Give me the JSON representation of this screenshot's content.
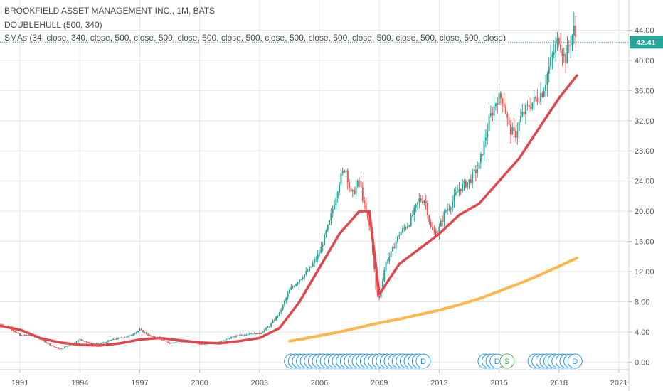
{
  "legend": {
    "title": "BROOKFIELD ASSET MANAGEMENT INC., 1M, BATS",
    "indicator1": "DOUBLEHULL (500, 340)",
    "indicator2": "SMAs (34, close, 340, close, 500, close, 500, close, 500, close, 500, close, 500, close, 500, close, 500, close, 500, close, 500, close)"
  },
  "colors": {
    "up": "#26a69a",
    "down": "#ef5350",
    "hull": "#e0474c",
    "sma": "#ffb74d",
    "grid": "#e6e6e6",
    "price_line": "#26a69a",
    "marker": "#2196f3",
    "marker_split": "#4caf50"
  },
  "chart_data": {
    "type": "line",
    "subtype": "candlestick",
    "xlabel": "",
    "ylabel": "",
    "x_ticks": [
      "1991",
      "1994",
      "1997",
      "2000",
      "2003",
      "2006",
      "2009",
      "2012",
      "2015",
      "2018",
      "2021"
    ],
    "y_ticks": [
      "0.00",
      "4.00",
      "8.00",
      "12.00",
      "16.00",
      "20.00",
      "24.00",
      "28.00",
      "32.00",
      "36.00",
      "40.00",
      "44.00"
    ],
    "xlim": [
      1990.0,
      2021.5
    ],
    "ylim": [
      -1.0,
      48.0
    ],
    "last_price": 42.41,
    "last_price_label": "42.41",
    "price_series": {
      "name": "",
      "x": [
        1990.0,
        1990.5,
        1991.0,
        1991.5,
        1992.0,
        1992.5,
        1993.0,
        1993.5,
        1994.0,
        1994.5,
        1995.0,
        1995.5,
        1996.0,
        1996.5,
        1997.0,
        1997.5,
        1998.0,
        1998.5,
        1999.0,
        1999.5,
        2000.0,
        2000.5,
        2001.0,
        2001.5,
        2002.0,
        2002.5,
        2003.0,
        2003.5,
        2004.0,
        2004.5,
        2005.0,
        2005.5,
        2006.0,
        2006.5,
        2007.0,
        2007.3,
        2007.6,
        2008.0,
        2008.3,
        2008.6,
        2008.85,
        2009.0,
        2009.3,
        2009.6,
        2010.0,
        2010.5,
        2011.0,
        2011.3,
        2011.6,
        2011.9,
        2012.3,
        2012.6,
        2013.0,
        2013.5,
        2014.0,
        2014.5,
        2014.9,
        2015.2,
        2015.5,
        2015.8,
        2016.1,
        2016.5,
        2016.9,
        2017.2,
        2017.6,
        2018.0,
        2018.3,
        2018.5,
        2018.75,
        2018.9
      ],
      "y": [
        5.0,
        4.6,
        3.5,
        3.6,
        3.1,
        2.3,
        1.7,
        2.3,
        3.0,
        2.5,
        2.4,
        2.9,
        3.2,
        3.5,
        4.3,
        3.5,
        3.0,
        2.5,
        2.8,
        2.6,
        2.4,
        2.5,
        2.7,
        3.2,
        3.6,
        3.8,
        3.8,
        4.8,
        6.5,
        9.5,
        11.0,
        12.3,
        14.5,
        18.5,
        24.0,
        26.0,
        22.0,
        24.0,
        20.0,
        17.0,
        9.0,
        8.5,
        13.0,
        14.5,
        17.0,
        18.5,
        21.5,
        21.5,
        17.5,
        17.0,
        20.0,
        21.0,
        23.0,
        24.0,
        26.0,
        32.0,
        35.0,
        35.0,
        31.0,
        30.0,
        32.5,
        34.0,
        35.0,
        36.0,
        40.0,
        43.0,
        40.0,
        42.0,
        44.0,
        42.41
      ]
    },
    "series": [
      {
        "name": "",
        "x": [
          1990.0,
          1991.0,
          1992.0,
          1993.0,
          1994.0,
          1995.0,
          1996.0,
          1997.0,
          1998.0,
          1999.0,
          2000.0,
          2001.0,
          2002.0,
          2003.0,
          2004.0,
          2005.0,
          2006.0,
          2007.0,
          2008.0,
          2008.5,
          2009.0,
          2010.0,
          2011.0,
          2012.0,
          2013.0,
          2014.0,
          2015.0,
          2016.0,
          2017.0,
          2018.0,
          2018.9
        ],
        "y": [
          4.8,
          4.3,
          3.2,
          2.6,
          2.3,
          2.2,
          2.5,
          3.0,
          3.2,
          2.9,
          2.6,
          2.5,
          2.8,
          3.2,
          4.5,
          8.0,
          12.5,
          17.0,
          20.0,
          20.0,
          9.0,
          13.0,
          15.0,
          17.0,
          19.5,
          21.0,
          24.0,
          27.0,
          31.0,
          35.0,
          38.0
        ]
      },
      {
        "name": "",
        "x": [
          2004.5,
          2005.0,
          2006.0,
          2007.0,
          2008.0,
          2009.0,
          2010.0,
          2011.0,
          2012.0,
          2013.0,
          2014.0,
          2015.0,
          2016.0,
          2017.0,
          2018.0,
          2018.9
        ],
        "y": [
          2.8,
          3.0,
          3.5,
          4.0,
          4.6,
          5.2,
          5.7,
          6.3,
          6.9,
          7.6,
          8.4,
          9.4,
          10.4,
          11.5,
          12.7,
          13.8
        ]
      }
    ],
    "dividend_markers": [
      {
        "x": 2004.6,
        "label": ""
      },
      {
        "x": 2004.8,
        "label": ""
      },
      {
        "x": 2005.0,
        "label": ""
      },
      {
        "x": 2005.2,
        "label": ""
      },
      {
        "x": 2005.4,
        "label": ""
      },
      {
        "x": 2005.6,
        "label": ""
      },
      {
        "x": 2005.8,
        "label": ""
      },
      {
        "x": 2006.0,
        "label": ""
      },
      {
        "x": 2006.2,
        "label": ""
      },
      {
        "x": 2006.4,
        "label": ""
      },
      {
        "x": 2006.6,
        "label": ""
      },
      {
        "x": 2006.8,
        "label": ""
      },
      {
        "x": 2007.0,
        "label": ""
      },
      {
        "x": 2007.2,
        "label": ""
      },
      {
        "x": 2007.4,
        "label": ""
      },
      {
        "x": 2007.6,
        "label": ""
      },
      {
        "x": 2007.8,
        "label": ""
      },
      {
        "x": 2008.0,
        "label": ""
      },
      {
        "x": 2008.2,
        "label": ""
      },
      {
        "x": 2008.4,
        "label": ""
      },
      {
        "x": 2008.6,
        "label": ""
      },
      {
        "x": 2008.8,
        "label": ""
      },
      {
        "x": 2009.0,
        "label": ""
      },
      {
        "x": 2009.2,
        "label": ""
      },
      {
        "x": 2009.4,
        "label": ""
      },
      {
        "x": 2009.6,
        "label": ""
      },
      {
        "x": 2009.8,
        "label": ""
      },
      {
        "x": 2010.0,
        "label": ""
      },
      {
        "x": 2010.2,
        "label": ""
      },
      {
        "x": 2010.4,
        "label": ""
      },
      {
        "x": 2010.6,
        "label": ""
      },
      {
        "x": 2010.8,
        "label": ""
      },
      {
        "x": 2011.0,
        "label": ""
      },
      {
        "x": 2011.2,
        "label": "D"
      },
      {
        "x": 2014.3,
        "label": ""
      },
      {
        "x": 2014.5,
        "label": ""
      },
      {
        "x": 2014.7,
        "label": ""
      },
      {
        "x": 2014.9,
        "label": "D"
      },
      {
        "x": 2015.4,
        "label": "S"
      },
      {
        "x": 2016.8,
        "label": ""
      },
      {
        "x": 2017.0,
        "label": ""
      },
      {
        "x": 2017.2,
        "label": ""
      },
      {
        "x": 2017.4,
        "label": ""
      },
      {
        "x": 2017.6,
        "label": ""
      },
      {
        "x": 2017.8,
        "label": ""
      },
      {
        "x": 2018.0,
        "label": ""
      },
      {
        "x": 2018.2,
        "label": ""
      },
      {
        "x": 2018.4,
        "label": ""
      },
      {
        "x": 2018.6,
        "label": ""
      },
      {
        "x": 2018.8,
        "label": "D"
      }
    ],
    "grid": true
  }
}
